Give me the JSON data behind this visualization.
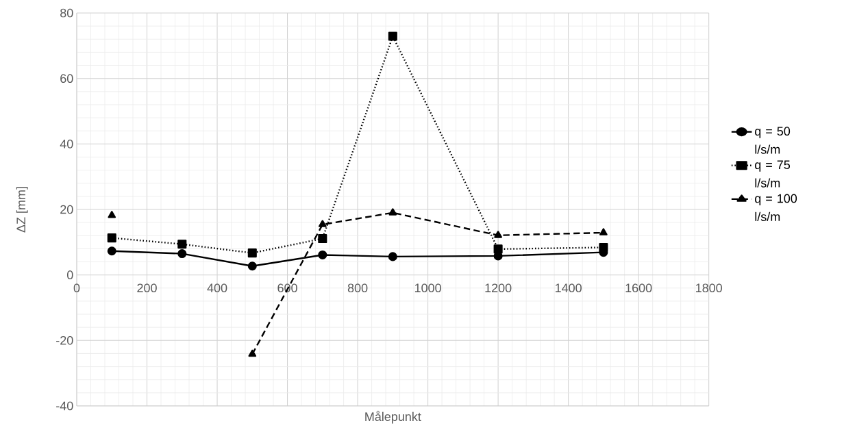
{
  "chart_data": {
    "type": "line",
    "xlabel": "Målepunkt",
    "ylabel": "ΔZ [mm]",
    "x": [
      100,
      300,
      500,
      700,
      900,
      1200,
      1500
    ],
    "series": [
      {
        "name": "q = 50 l/s/m",
        "color": "#000000",
        "marker": "circle",
        "line_style": "solid",
        "values": [
          7.3,
          6.5,
          2.7,
          6.1,
          5.6,
          5.8,
          6.9
        ]
      },
      {
        "name": "q = 75 l/s/m",
        "color": "#000000",
        "marker": "square",
        "line_style": "dotted",
        "values": [
          11.3,
          9.4,
          6.7,
          11.1,
          72.9,
          7.9,
          8.4
        ]
      },
      {
        "name": "q = 100 l/s/m",
        "color": "#000000",
        "marker": "triangle",
        "line_style": "dashed",
        "values": [
          18.2,
          null,
          -24.2,
          15.4,
          19.0,
          12.1,
          12.9
        ]
      }
    ],
    "xlim": [
      0,
      1800
    ],
    "ylim": [
      -40,
      80
    ],
    "xticks": [
      0,
      200,
      400,
      600,
      800,
      1000,
      1200,
      1400,
      1600,
      1800
    ],
    "yticks": [
      -40,
      -20,
      0,
      20,
      40,
      60,
      80
    ],
    "grid": true,
    "legend": "right"
  }
}
